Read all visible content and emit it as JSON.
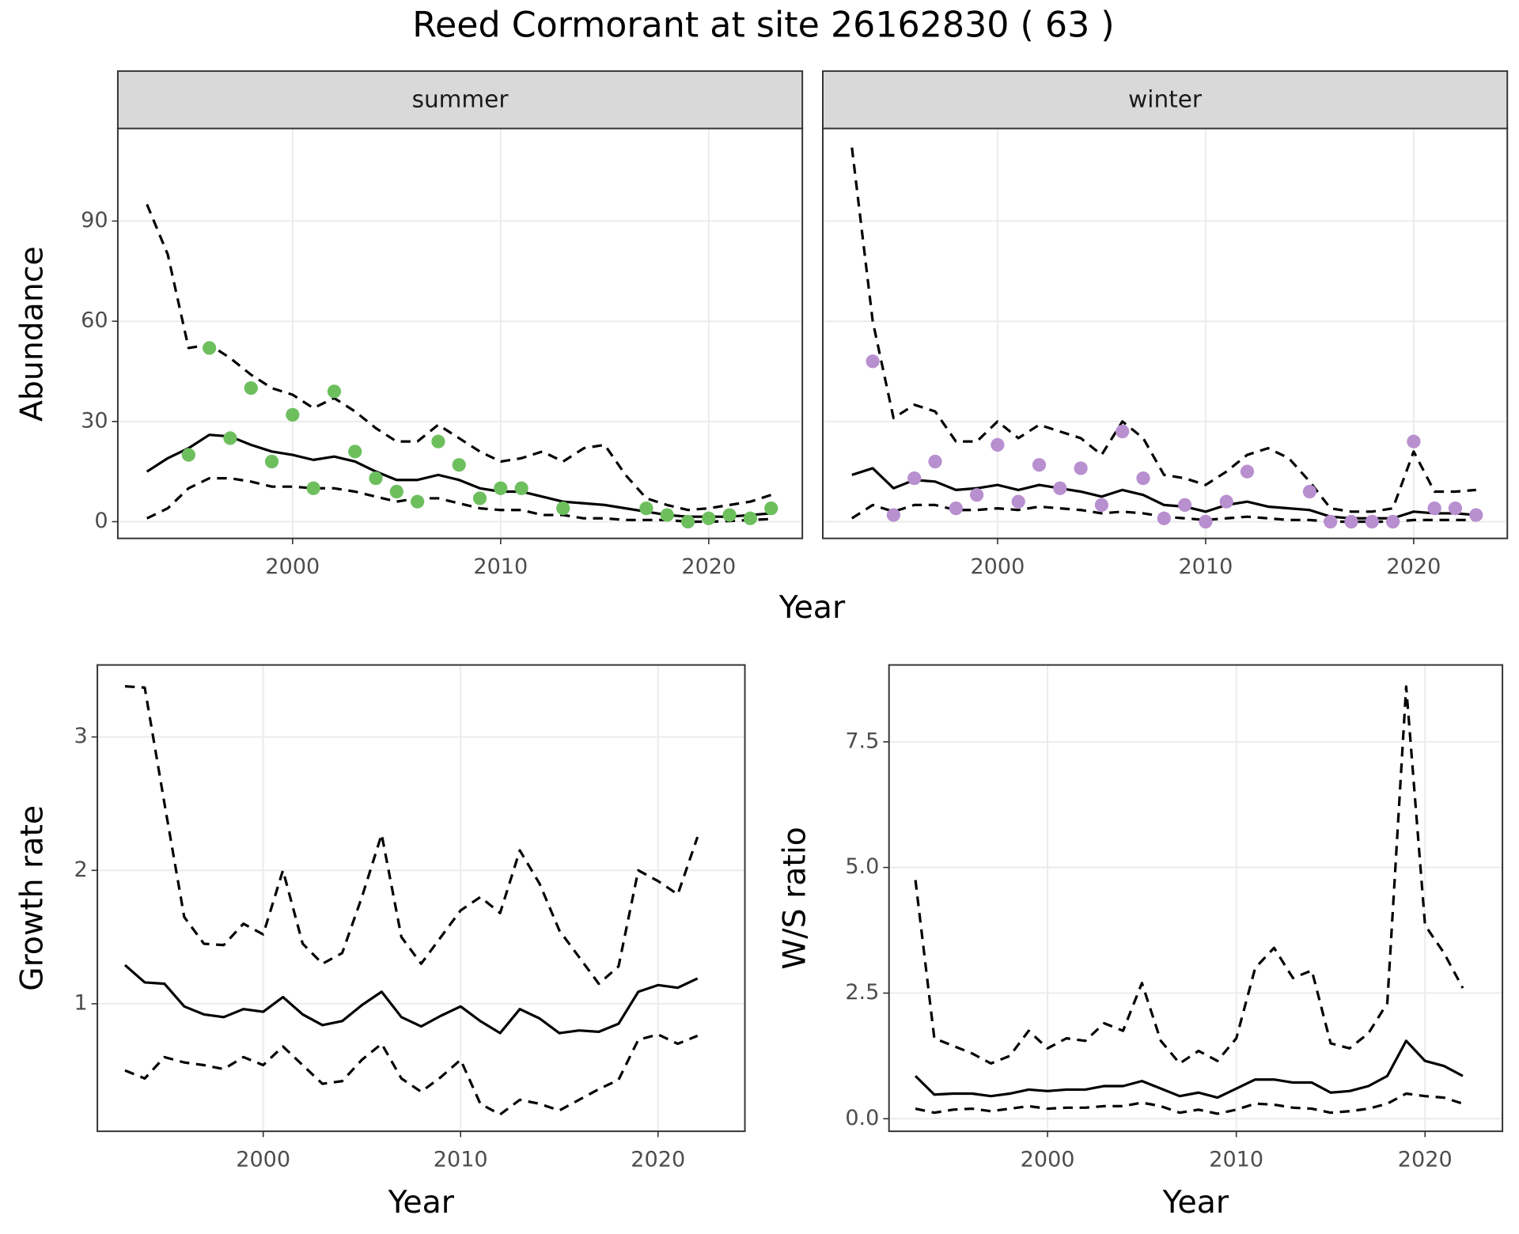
{
  "title": "Reed Cormorant at site 26162830 ( 63 )",
  "chart_data": [
    {
      "type": "line",
      "xlabel": "Year",
      "ylabel": "Abundance",
      "xlim": [
        1991.6,
        2024.5
      ],
      "xticks": [
        2000,
        2010,
        2020
      ],
      "ylim": [
        -5.0,
        117.7
      ],
      "yticks": [
        0,
        30,
        60,
        90
      ],
      "grid": true,
      "x": [
        1993,
        1994,
        1995,
        1996,
        1997,
        1998,
        1999,
        2000,
        2001,
        2002,
        2003,
        2004,
        2005,
        2006,
        2007,
        2008,
        2009,
        2010,
        2011,
        2012,
        2013,
        2014,
        2015,
        2016,
        2017,
        2018,
        2019,
        2020,
        2021,
        2022,
        2023
      ],
      "panels": [
        {
          "title": "summer",
          "series": [
            {
              "color": "#000000",
              "dash": true,
              "values": [
                95,
                80,
                52,
                53,
                49,
                44,
                40,
                38,
                34,
                37,
                33,
                28,
                24,
                24,
                29,
                25,
                21,
                18,
                19,
                21,
                18,
                22,
                23,
                14,
                7,
                5,
                3.5,
                4,
                5,
                6,
                8
              ]
            },
            {
              "color": "#000000",
              "dash": false,
              "values": [
                15,
                19,
                22,
                26,
                25.5,
                23,
                21,
                20,
                18.5,
                19.5,
                18,
                15,
                12.5,
                12.5,
                14,
                12.5,
                10,
                9,
                9,
                7.5,
                6,
                5.5,
                5,
                4,
                3,
                2,
                1.5,
                1.5,
                1.5,
                2,
                2.5
              ]
            },
            {
              "color": "#000000",
              "dash": true,
              "values": [
                1,
                4,
                10,
                13,
                13,
                12,
                10.5,
                10.5,
                10,
                10,
                9,
                7.5,
                6,
                7,
                7,
                5.5,
                4,
                3.5,
                3.5,
                2,
                2,
                1,
                1,
                0.5,
                0.5,
                0.5,
                0,
                0,
                0.2,
                0.5,
                0.8
              ]
            },
            {
              "color": "#6dbf5e",
              "marker": "point",
              "x": [
                1995,
                1996,
                1997,
                1998,
                1999,
                2000,
                2001,
                2002,
                2003,
                2004,
                2005,
                2006,
                2007,
                2008,
                2009,
                2010,
                2011,
                2013,
                2017,
                2018,
                2019,
                2020,
                2021,
                2022,
                2023
              ],
              "values": [
                20,
                52,
                25,
                40,
                18,
                32,
                10,
                39,
                21,
                13,
                9,
                6,
                24,
                17,
                7,
                10,
                10,
                4,
                4,
                2,
                0,
                1,
                2,
                1,
                4
              ]
            }
          ]
        },
        {
          "title": "winter",
          "series": [
            {
              "color": "#000000",
              "dash": true,
              "values": [
                112,
                60,
                31,
                35,
                33,
                24,
                24,
                30,
                25,
                29,
                27,
                25,
                20,
                30,
                25,
                14,
                13,
                11,
                15,
                20,
                22,
                19,
                12,
                4,
                3,
                3,
                4,
                21,
                9,
                9,
                9.5
              ]
            },
            {
              "color": "#000000",
              "dash": false,
              "values": [
                14,
                16,
                10,
                12.5,
                12,
                9.5,
                10,
                11,
                9.5,
                11,
                10,
                9,
                7.5,
                9.5,
                8,
                5,
                4.5,
                3,
                5,
                6,
                4.5,
                4,
                3.5,
                1.5,
                1,
                1,
                1,
                3,
                2.5,
                2.5,
                2
              ]
            },
            {
              "color": "#000000",
              "dash": true,
              "values": [
                1,
                5,
                3,
                5,
                5,
                3.5,
                3.5,
                4,
                3.5,
                4.5,
                4,
                3.5,
                2.5,
                3,
                2.5,
                1.5,
                1,
                0.5,
                1,
                1.5,
                1,
                0.5,
                0.5,
                0,
                0,
                0,
                0,
                0.5,
                0.5,
                0.5,
                0.5
              ]
            },
            {
              "color": "#b88fcf",
              "marker": "point",
              "x": [
                1994,
                1995,
                1996,
                1997,
                1998,
                1999,
                2000,
                2001,
                2002,
                2003,
                2004,
                2005,
                2006,
                2007,
                2008,
                2009,
                2010,
                2011,
                2012,
                2015,
                2016,
                2017,
                2018,
                2019,
                2020,
                2021,
                2022,
                2023
              ],
              "values": [
                48,
                2,
                13,
                18,
                4,
                8,
                23,
                6,
                17,
                10,
                16,
                5,
                27,
                13,
                1,
                5,
                0,
                6,
                15,
                9,
                0,
                0,
                0,
                0,
                24,
                4,
                4,
                2
              ]
            }
          ]
        }
      ]
    },
    {
      "type": "line",
      "xlabel": "Year",
      "ylabel": "Growth rate",
      "xlim": [
        1991.6,
        2024.4
      ],
      "xticks": [
        2000,
        2010,
        2020
      ],
      "ylim": [
        0.044,
        3.54
      ],
      "yticks": [
        1,
        2,
        3
      ],
      "grid": true,
      "x": [
        1993,
        1994,
        1995,
        1996,
        1997,
        1998,
        1999,
        2000,
        2001,
        2002,
        2003,
        2004,
        2005,
        2006,
        2007,
        2008,
        2009,
        2010,
        2011,
        2012,
        2013,
        2014,
        2015,
        2016,
        2017,
        2018,
        2019,
        2020,
        2021,
        2022
      ],
      "series": [
        {
          "color": "#000000",
          "dash": true,
          "values": [
            3.38,
            3.37,
            2.5,
            1.65,
            1.45,
            1.44,
            1.6,
            1.52,
            2.0,
            1.45,
            1.3,
            1.38,
            1.8,
            2.27,
            1.5,
            1.3,
            1.5,
            1.7,
            1.8,
            1.68,
            2.15,
            1.9,
            1.55,
            1.35,
            1.15,
            1.28,
            2.0,
            1.92,
            1.82,
            2.25
          ]
        },
        {
          "color": "#000000",
          "dash": false,
          "values": [
            1.29,
            1.16,
            1.15,
            0.98,
            0.92,
            0.9,
            0.96,
            0.94,
            1.05,
            0.92,
            0.84,
            0.87,
            0.99,
            1.09,
            0.9,
            0.83,
            0.91,
            0.98,
            0.87,
            0.78,
            0.96,
            0.89,
            0.78,
            0.8,
            0.79,
            0.85,
            1.09,
            1.14,
            1.12,
            1.19
          ]
        },
        {
          "color": "#000000",
          "dash": true,
          "values": [
            0.5,
            0.44,
            0.6,
            0.56,
            0.54,
            0.51,
            0.6,
            0.54,
            0.68,
            0.54,
            0.4,
            0.42,
            0.58,
            0.7,
            0.44,
            0.34,
            0.45,
            0.58,
            0.25,
            0.17,
            0.28,
            0.25,
            0.2,
            0.28,
            0.36,
            0.43,
            0.73,
            0.77,
            0.7,
            0.76
          ]
        }
      ]
    },
    {
      "type": "line",
      "xlabel": "Year",
      "ylabel": "W/S ratio",
      "xlim": [
        1991.6,
        2024.1
      ],
      "xticks": [
        2000,
        2010,
        2020
      ],
      "ylim": [
        -0.25,
        9.03
      ],
      "yticks": [
        {
          "value": 0,
          "label": "0.0"
        },
        2.5,
        {
          "value": 5,
          "label": "5.0"
        },
        7.5
      ],
      "grid": true,
      "x": [
        1993,
        1994,
        1995,
        1996,
        1997,
        1998,
        1999,
        2000,
        2001,
        2002,
        2003,
        2004,
        2005,
        2006,
        2007,
        2008,
        2009,
        2010,
        2011,
        2012,
        2013,
        2014,
        2015,
        2016,
        2017,
        2018,
        2019,
        2020,
        2021,
        2022
      ],
      "series": [
        {
          "color": "#000000",
          "dash": true,
          "values": [
            4.75,
            1.6,
            1.45,
            1.3,
            1.1,
            1.25,
            1.75,
            1.4,
            1.6,
            1.55,
            1.9,
            1.75,
            2.7,
            1.55,
            1.1,
            1.35,
            1.15,
            1.6,
            3.0,
            3.4,
            2.8,
            2.95,
            1.5,
            1.4,
            1.7,
            2.3,
            8.6,
            3.85,
            3.3,
            2.6
          ]
        },
        {
          "color": "#000000",
          "dash": false,
          "values": [
            0.85,
            0.48,
            0.5,
            0.5,
            0.45,
            0.5,
            0.58,
            0.55,
            0.58,
            0.58,
            0.65,
            0.65,
            0.75,
            0.6,
            0.45,
            0.52,
            0.42,
            0.6,
            0.78,
            0.78,
            0.72,
            0.72,
            0.52,
            0.55,
            0.65,
            0.85,
            1.55,
            1.15,
            1.05,
            0.85
          ]
        },
        {
          "color": "#000000",
          "dash": true,
          "values": [
            0.2,
            0.12,
            0.18,
            0.2,
            0.15,
            0.2,
            0.25,
            0.2,
            0.22,
            0.22,
            0.25,
            0.25,
            0.32,
            0.25,
            0.12,
            0.18,
            0.1,
            0.18,
            0.3,
            0.28,
            0.22,
            0.2,
            0.12,
            0.15,
            0.2,
            0.3,
            0.5,
            0.45,
            0.42,
            0.3
          ]
        }
      ]
    }
  ]
}
